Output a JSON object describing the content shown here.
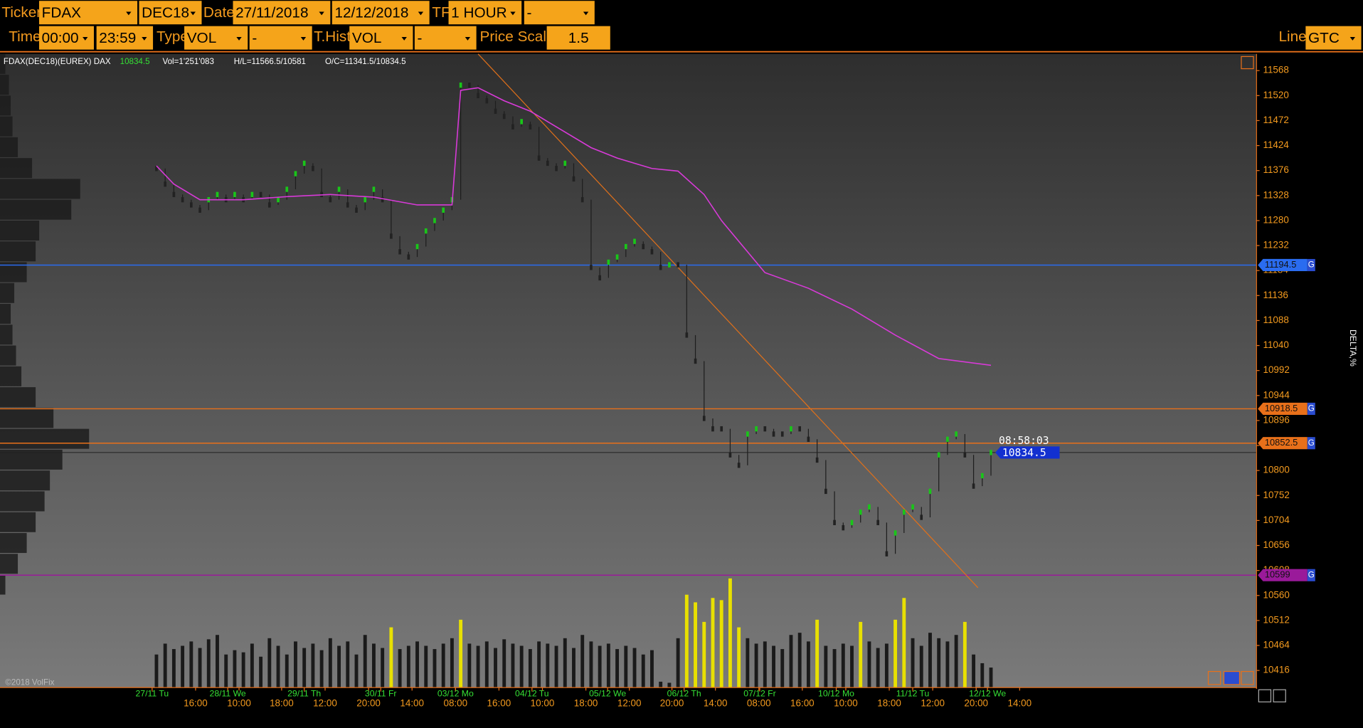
{
  "toolbar": {
    "labels": [
      "Ticker",
      "Date",
      "TF",
      "Time",
      "Type",
      "T.Hist",
      "Price Scale",
      "Line"
    ],
    "fields": [
      "FDAX",
      "DEC18",
      "27/11/2018",
      "12/12/2018",
      "1 HOUR",
      "-",
      "00:00",
      "23:59",
      "VOL",
      "-",
      "VOL",
      "-",
      "1.5",
      "GTC"
    ]
  },
  "info": {
    "symbol": "FDAX(DEC18)(EUREX) DAX",
    "last": "10834.5",
    "volume": "Vol=1'251'083",
    "high_low": "H/L=11566.5/10581",
    "open_close": "O/C=11341.5/10834.5"
  },
  "copyright": "©2018 VolFix",
  "delta_label": "DELTA,%",
  "chart_data": {
    "type": "candlestick",
    "ylim": [
      10384,
      11600
    ],
    "yticks": [
      11568,
      11520,
      11472,
      11424,
      11376,
      11328,
      11280,
      11232,
      11184,
      11136,
      11088,
      11040,
      10992,
      10944,
      10896,
      10848,
      10800,
      10752,
      10704,
      10656,
      10608,
      10560,
      10512,
      10464,
      10416
    ],
    "xlim": [
      -18,
      126.5
    ],
    "date_ticks": [
      {
        "value": -0.5,
        "label": "27/11 Tu"
      },
      {
        "value": 8.2,
        "label": "28/11 We"
      },
      {
        "value": 17,
        "label": "29/11 Th"
      },
      {
        "value": 25.8,
        "label": "30/11 Fr"
      },
      {
        "value": 34.4,
        "label": "03/12 Mo"
      },
      {
        "value": 43.2,
        "label": "04/12 Tu"
      },
      {
        "value": 51.9,
        "label": "05/12 We"
      },
      {
        "value": 60.7,
        "label": "06/12 Th"
      },
      {
        "value": 69.4,
        "label": "07/12 Fr"
      },
      {
        "value": 78.2,
        "label": "10/12 Mo"
      },
      {
        "value": 87,
        "label": "11/12 Tu"
      },
      {
        "value": 95.6,
        "label": "12/12 We"
      }
    ],
    "time_ticks": [
      {
        "value": 4.5,
        "label": "16:00"
      },
      {
        "value": 9.5,
        "label": "10:00"
      },
      {
        "value": 14.4,
        "label": "18:00"
      },
      {
        "value": 19.4,
        "label": "12:00"
      },
      {
        "value": 24.4,
        "label": "20:00"
      },
      {
        "value": 29.4,
        "label": "14:00"
      },
      {
        "value": 34.4,
        "label": "08:00"
      },
      {
        "value": 39.4,
        "label": "16:00"
      },
      {
        "value": 44.4,
        "label": "10:00"
      },
      {
        "value": 49.4,
        "label": "18:00"
      },
      {
        "value": 54.4,
        "label": "12:00"
      },
      {
        "value": 59.3,
        "label": "20:00"
      },
      {
        "value": 64.3,
        "label": "14:00"
      },
      {
        "value": 69.3,
        "label": "08:00"
      },
      {
        "value": 74.3,
        "label": "16:00"
      },
      {
        "value": 79.3,
        "label": "10:00"
      },
      {
        "value": 84.3,
        "label": "18:00"
      },
      {
        "value": 89.3,
        "label": "12:00"
      },
      {
        "value": 94.3,
        "label": "20:00"
      },
      {
        "value": 99.3,
        "label": "14:00"
      }
    ],
    "close": [
      11380,
      11350,
      11330,
      11320,
      11310,
      11300,
      11320,
      11330,
      11320,
      11330,
      11320,
      11330,
      11330,
      11310,
      11320,
      11340,
      11370,
      11390,
      11380,
      11330,
      11320,
      11340,
      11310,
      11300,
      11320,
      11340,
      11320,
      11250,
      11220,
      11210,
      11230,
      11260,
      11280,
      11300,
      11320,
      11540,
      11540,
      11520,
      11510,
      11490,
      11480,
      11460,
      11470,
      11460,
      11400,
      11390,
      11380,
      11390,
      11360,
      11320,
      11190,
      11170,
      11200,
      11210,
      11230,
      11240,
      11230,
      11220,
      11190,
      11195,
      11195,
      11060,
      11010,
      10900,
      10880,
      10880,
      10830,
      10810,
      10870,
      10880,
      10880,
      10870,
      10870,
      10880,
      10880,
      10860,
      10820,
      10760,
      10700,
      10690,
      10700,
      10720,
      10730,
      10700,
      10640,
      10680,
      10720,
      10730,
      10710,
      10760,
      10830,
      10860,
      10870,
      10830,
      10770,
      10790,
      10834.5
    ],
    "up_color": "#19c619",
    "down_color": "#222222",
    "volume": {
      "values": [
        30,
        40,
        35,
        38,
        42,
        36,
        44,
        48,
        30,
        34,
        32,
        40,
        28,
        45,
        38,
        30,
        42,
        36,
        40,
        34,
        45,
        38,
        42,
        30,
        48,
        40,
        36,
        55,
        35,
        38,
        42,
        38,
        35,
        40,
        45,
        62,
        40,
        38,
        42,
        36,
        44,
        40,
        38,
        35,
        42,
        40,
        38,
        45,
        36,
        48,
        42,
        38,
        40,
        35,
        38,
        36,
        30,
        34,
        5,
        4,
        45,
        85,
        78,
        60,
        82,
        80,
        100,
        55,
        45,
        40,
        42,
        38,
        35,
        48,
        50,
        42,
        62,
        38,
        35,
        40,
        38,
        60,
        42,
        36,
        40,
        62,
        82,
        45,
        38,
        50,
        45,
        42,
        48,
        60,
        30,
        22,
        18
      ],
      "vlim": [
        0,
        100
      ],
      "color": "#1a1a1a",
      "highlight_color": "#e8e000",
      "highlight_threshold": 55
    },
    "vwap": {
      "x": [
        0,
        2,
        5,
        10,
        15,
        20,
        25,
        30,
        34,
        35,
        37,
        40,
        43,
        45,
        50,
        53,
        57,
        60,
        63,
        65,
        70,
        75,
        80,
        85,
        90,
        96
      ],
      "values": [
        11385,
        11350,
        11320,
        11320,
        11326,
        11330,
        11325,
        11310,
        11310,
        11530,
        11535,
        11510,
        11490,
        11470,
        11420,
        11400,
        11380,
        11375,
        11330,
        11280,
        11180,
        11150,
        11110,
        11060,
        11015,
        11002
      ],
      "color": "#d83ad8"
    },
    "trendline": {
      "x": [
        37,
        94.5
      ],
      "values": [
        11600,
        10575
      ],
      "color": "#e0701a"
    },
    "levels": [
      {
        "value": 11194.5,
        "color": "#2a6cf0"
      },
      {
        "value": 10918.5,
        "color": "#e8701a"
      },
      {
        "value": 10852.5,
        "color": "#e8701a"
      },
      {
        "value": 10599,
        "color": "#9a1a9a"
      }
    ],
    "level_tag": "G",
    "last_price": 10834.5,
    "timer": "08:58:03",
    "profile": {
      "prices": [
        11580,
        11540,
        11500,
        11460,
        11420,
        11380,
        11340,
        11300,
        11260,
        11220,
        11180,
        11140,
        11100,
        11060,
        11020,
        10980,
        10940,
        10900,
        10860,
        10820,
        10780,
        10740,
        10700,
        10660,
        10620,
        10580
      ],
      "values": [
        3,
        5,
        6,
        7,
        10,
        18,
        45,
        40,
        22,
        20,
        15,
        8,
        6,
        7,
        9,
        12,
        20,
        30,
        50,
        35,
        28,
        25,
        20,
        15,
        10,
        3
      ],
      "plim": [
        0,
        100
      ],
      "color": "#1c1c1c"
    }
  }
}
